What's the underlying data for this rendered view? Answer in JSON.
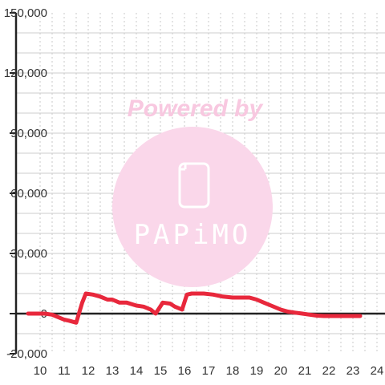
{
  "chart_data": {
    "type": "line",
    "title": "",
    "xlabel": "",
    "ylabel": "",
    "xlim": [
      9.5,
      24.0
    ],
    "ylim": [
      -20000,
      150000
    ],
    "x_ticks": [
      10,
      11,
      12,
      13,
      14,
      15,
      16,
      17,
      18,
      19,
      20,
      21,
      22,
      23,
      24
    ],
    "y_ticks": [
      -20000,
      0,
      30000,
      60000,
      90000,
      120000,
      150000
    ],
    "y_tick_labels": [
      "-20,000",
      "0",
      "30,000",
      "60,000",
      "90,000",
      "120,000",
      "150,000"
    ],
    "grid": true,
    "series": [
      {
        "color": "#e8283c",
        "x": [
          9.5,
          10.2,
          10.5,
          10.7,
          11.0,
          11.2,
          11.5,
          11.75,
          11.9,
          12.2,
          12.5,
          12.8,
          13.0,
          13.3,
          13.6,
          14.0,
          14.3,
          14.6,
          14.8,
          15.1,
          15.4,
          15.6,
          15.9,
          16.1,
          16.3,
          16.8,
          17.2,
          17.6,
          18.0,
          18.3,
          18.7,
          19.0,
          19.3,
          19.6,
          20.0,
          20.3,
          20.6,
          20.9,
          21.2,
          21.5,
          21.8,
          22.5,
          23.3
        ],
        "y": [
          0,
          0,
          -500,
          -1500,
          -3000,
          -3500,
          -4500,
          5500,
          10000,
          9500,
          8500,
          7000,
          7000,
          5500,
          5500,
          4000,
          3500,
          2000,
          0,
          5500,
          5000,
          3500,
          2000,
          9500,
          10000,
          10000,
          9500,
          8500,
          8000,
          8000,
          8000,
          7000,
          5500,
          4000,
          2000,
          1000,
          500,
          0,
          -500,
          -1000,
          -1200,
          -1200,
          -1200
        ]
      }
    ]
  },
  "watermark": {
    "line1": "Powered by",
    "brand": "PAPiMO",
    "color": "#f8c8e0",
    "circle_color": "#fad7ea",
    "icon": "phone-icon"
  }
}
